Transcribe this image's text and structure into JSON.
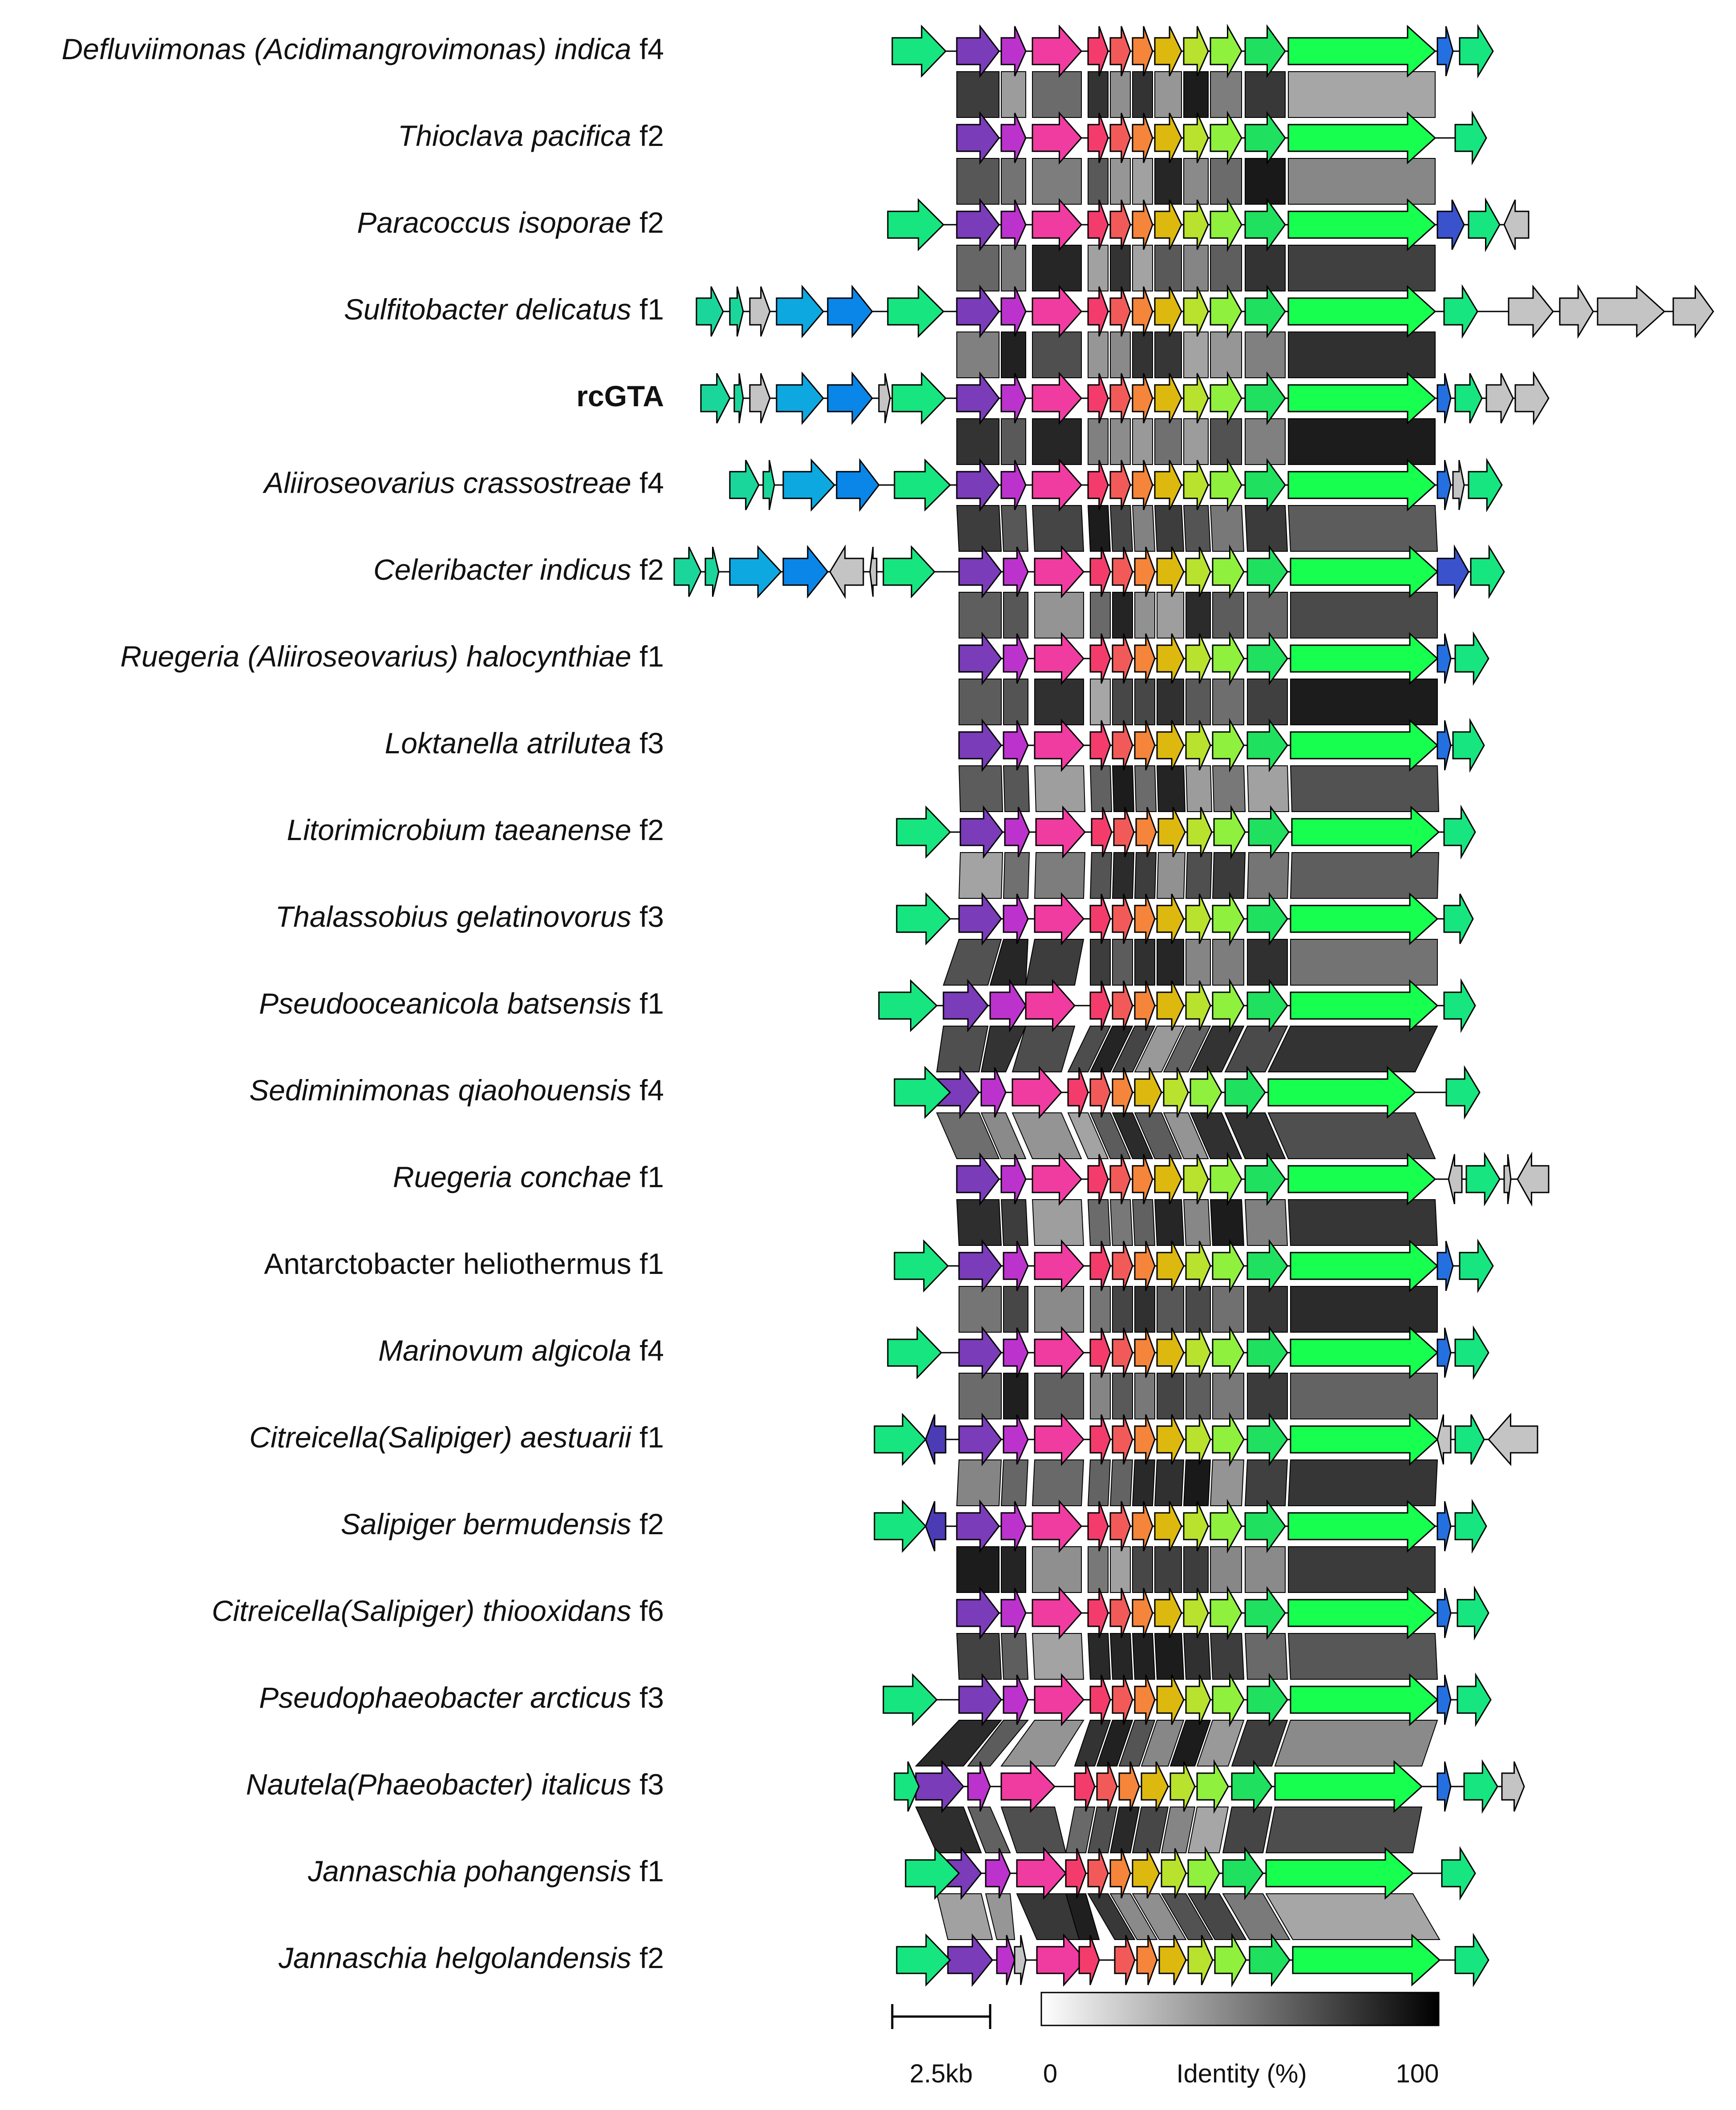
{
  "figure_title": "",
  "genomes": [
    {
      "parts": [
        {
          "t": "Defluviimonas (Acidimangrovimonas) indica",
          "i": true
        },
        {
          "t": " f4",
          "i": false
        }
      ]
    },
    {
      "parts": [
        {
          "t": "Thioclava pacifica",
          "i": true
        },
        {
          "t": " f2",
          "i": false
        }
      ]
    },
    {
      "parts": [
        {
          "t": "Paracoccus isoporae",
          "i": true
        },
        {
          "t": " f2",
          "i": false
        }
      ]
    },
    {
      "parts": [
        {
          "t": "Sulfitobacter delicatus",
          "i": true
        },
        {
          "t": " f1",
          "i": false
        }
      ]
    },
    {
      "parts": [
        {
          "t": "rcGTA",
          "i": false,
          "b": true
        }
      ]
    },
    {
      "parts": [
        {
          "t": "Aliiroseovarius crassostreae",
          "i": true
        },
        {
          "t": " f4",
          "i": false
        }
      ]
    },
    {
      "parts": [
        {
          "t": "Celeribacter indicus",
          "i": true
        },
        {
          "t": " f2",
          "i": false
        }
      ]
    },
    {
      "parts": [
        {
          "t": "Ruegeria (Aliiroseovarius) halocynthiae",
          "i": true
        },
        {
          "t": " f1",
          "i": false
        }
      ]
    },
    {
      "parts": [
        {
          "t": "Loktanella atrilutea",
          "i": true
        },
        {
          "t": " f3",
          "i": false
        }
      ]
    },
    {
      "parts": [
        {
          "t": "Litorimicrobium taeanense",
          "i": true
        },
        {
          "t": " f2",
          "i": false
        }
      ]
    },
    {
      "parts": [
        {
          "t": "Thalassobius gelatinovorus",
          "i": true
        },
        {
          "t": " f3",
          "i": false
        }
      ]
    },
    {
      "parts": [
        {
          "t": "Pseudooceanicola batsensis",
          "i": true
        },
        {
          "t": " f1",
          "i": false
        }
      ]
    },
    {
      "parts": [
        {
          "t": "Sediminimonas qiaohouensis",
          "i": true
        },
        {
          "t": " f4",
          "i": false
        }
      ]
    },
    {
      "parts": [
        {
          "t": "Ruegeria conchae",
          "i": true
        },
        {
          "t": " f1",
          "i": false
        }
      ]
    },
    {
      "parts": [
        {
          "t": "Antarctobacter heliothermus f1",
          "i": false
        }
      ]
    },
    {
      "parts": [
        {
          "t": "Marinovum algicola",
          "i": true
        },
        {
          "t": " f4",
          "i": false
        }
      ]
    },
    {
      "parts": [
        {
          "t": "Citreicella(Salipiger) aestuarii",
          "i": true
        },
        {
          "t": " f1",
          "i": false
        }
      ]
    },
    {
      "parts": [
        {
          "t": "Salipiger bermudensis",
          "i": true
        },
        {
          "t": " f2",
          "i": false
        }
      ]
    },
    {
      "parts": [
        {
          "t": "Citreicella(Salipiger) thiooxidans",
          "i": true
        },
        {
          "t": " f6",
          "i": false
        }
      ]
    },
    {
      "parts": [
        {
          "t": "Pseudophaeobacter arcticus",
          "i": true
        },
        {
          "t": " f3",
          "i": false
        }
      ]
    },
    {
      "parts": [
        {
          "t": "Nautela(Phaeobacter) italicus",
          "i": true
        },
        {
          "t": " f3",
          "i": false
        }
      ]
    },
    {
      "parts": [
        {
          "t": "Jannaschia pohangensis",
          "i": true
        },
        {
          "t": " f1",
          "i": false
        }
      ]
    },
    {
      "parts": [
        {
          "t": "Jannaschia helgolandensis",
          "i": true
        },
        {
          "t": " f2",
          "i": false
        }
      ]
    }
  ],
  "gene_colors": {
    "g1": "#17e57f",
    "g2": "#7a3cb8",
    "g3": "#bb33cc",
    "g4": "#f03ca0",
    "g5": "#f43c6c",
    "g6": "#f25a5a",
    "g7": "#f4853a",
    "g8": "#ddb90f",
    "g9": "#b9e22e",
    "g10": "#8ff03d",
    "g11": "#1fe05f",
    "g12": "#17ff4f",
    "g13": "#2470e0",
    "g14": "#17e57f",
    "up_teal": "#1bd69a",
    "up_cyan": "#0ea8e0",
    "up_blue": "#0a86e8",
    "flank_blue": "#3a52cc",
    "flank_purple": "#4b3bb5",
    "flank_gray": "#c4c4c4"
  },
  "scale_bar": {
    "label": "2.5kb",
    "kb": 2.5
  },
  "identity_legend": {
    "title": "Identity (%)",
    "min_label": "0",
    "max_label": "100",
    "min": 0,
    "max": 100
  }
}
